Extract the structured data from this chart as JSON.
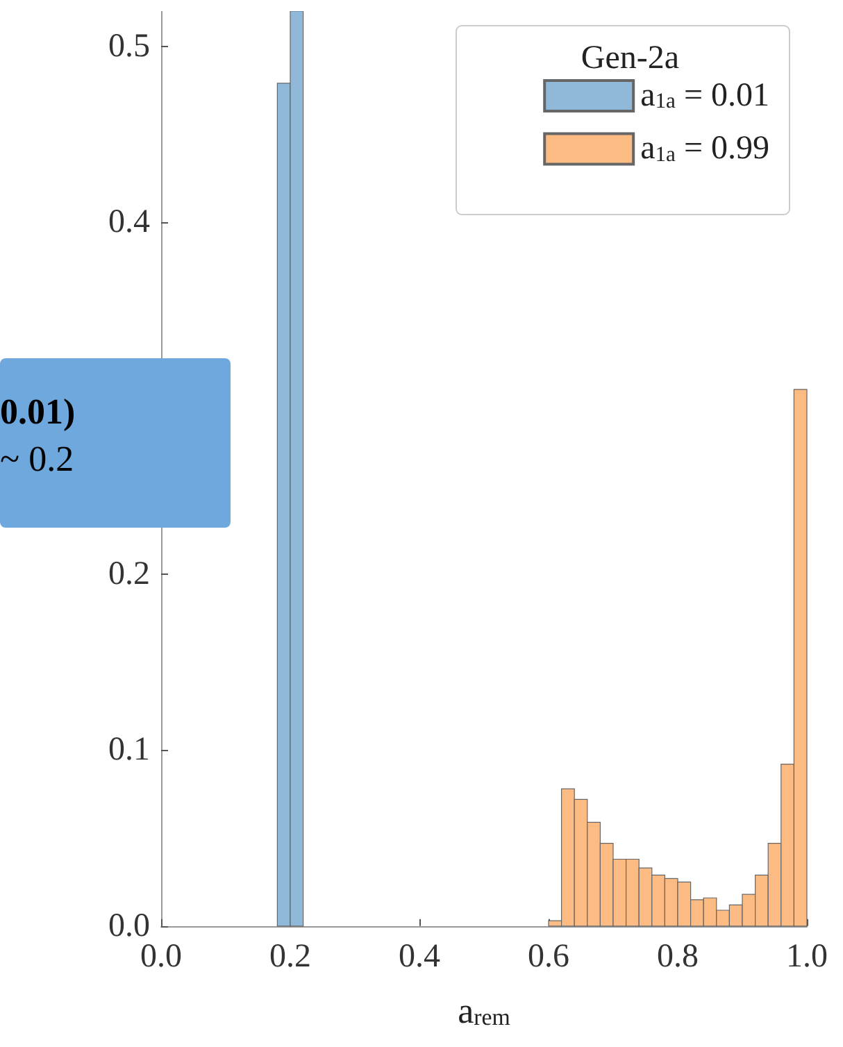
{
  "chart_data": {
    "type": "histogram",
    "xlabel": "a$_{rem}$",
    "legend_title": "Gen-2a",
    "bins": [
      0.18,
      0.2,
      0.22,
      0.24,
      0.26,
      0.28,
      0.3,
      0.32,
      0.34,
      0.36,
      0.38,
      0.4,
      0.42,
      0.44,
      0.46,
      0.48,
      0.5,
      0.52,
      0.54,
      0.56,
      0.58,
      0.6,
      0.62,
      0.64,
      0.66,
      0.68,
      0.7,
      0.72,
      0.74,
      0.76,
      0.78,
      0.8,
      0.82,
      0.84,
      0.86,
      0.88,
      0.9,
      0.92,
      0.94,
      0.96,
      0.98,
      1.0
    ],
    "series": [
      {
        "name": "a$_{1a}$ = 0.01",
        "color": "#8fb8d9",
        "values": [
          0.479,
          0.52,
          0,
          0,
          0,
          0,
          0,
          0,
          0,
          0,
          0,
          0,
          0,
          0,
          0,
          0,
          0,
          0,
          0,
          0,
          0,
          0,
          0,
          0,
          0,
          0,
          0,
          0,
          0,
          0,
          0,
          0,
          0,
          0,
          0,
          0,
          0,
          0,
          0,
          0,
          0
        ]
      },
      {
        "name": "a$_{1a}$ = 0.99",
        "color": "#fdbb84",
        "values": [
          0,
          0,
          0,
          0,
          0,
          0,
          0,
          0,
          0,
          0,
          0,
          0,
          0,
          0,
          0,
          0,
          0,
          0,
          0,
          0,
          0,
          0.003,
          0.078,
          0.072,
          0.059,
          0.047,
          0.038,
          0.038,
          0.033,
          0.029,
          0.027,
          0.025,
          0.015,
          0.016,
          0.009,
          0.012,
          0.018,
          0.029,
          0.047,
          0.092,
          0.305
        ]
      }
    ],
    "xlim": [
      0,
      1.0
    ],
    "xticks": [
      {
        "value": 0,
        "label": "0.0"
      },
      0.2,
      0.4,
      0.6,
      0.8,
      {
        "value": 1,
        "label": "1.0"
      }
    ],
    "ylim": [
      0,
      0.52
    ],
    "yticks": [
      {
        "value": 0,
        "label": "0.0"
      },
      0.1,
      0.2,
      {
        "value": 0.3,
        "label": null
      },
      0.4,
      0.5
    ],
    "grid": false,
    "legend": "top right",
    "annotations": [
      "0.01)",
      "~ 0.2"
    ]
  }
}
